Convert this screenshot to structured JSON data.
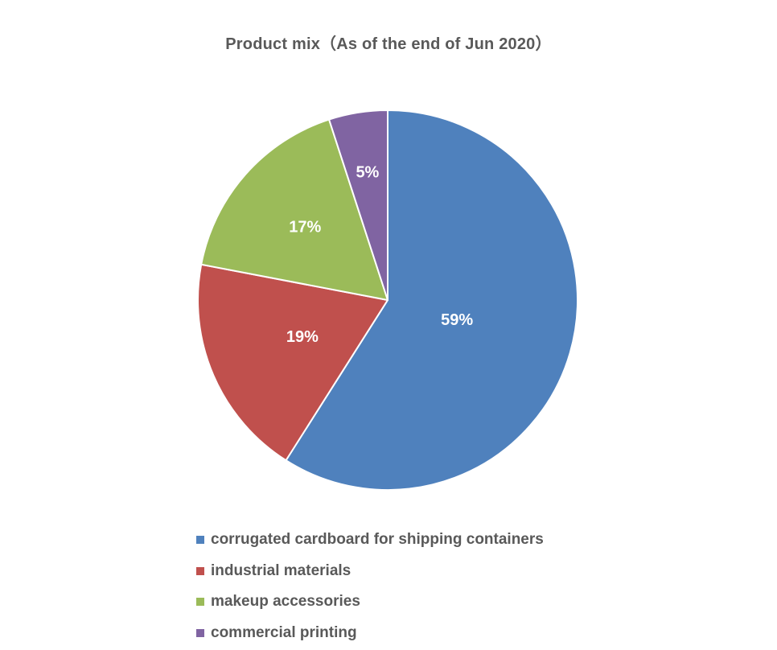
{
  "chart_data": {
    "type": "pie",
    "title": "Product mix（As of the end of Jun 2020）",
    "categories": [
      "corrugated cardboard for shipping containers",
      "industrial materials",
      "makeup accessories",
      "commercial printing"
    ],
    "values": [
      59,
      19,
      17,
      5
    ],
    "data_labels": [
      "59%",
      "19%",
      "17%",
      "5%"
    ],
    "colors": [
      "#4F81BD",
      "#C0504D",
      "#9BBB59",
      "#8064A2"
    ],
    "start_angle_deg": 0,
    "direction": "clockwise",
    "legend_position": "bottom"
  }
}
